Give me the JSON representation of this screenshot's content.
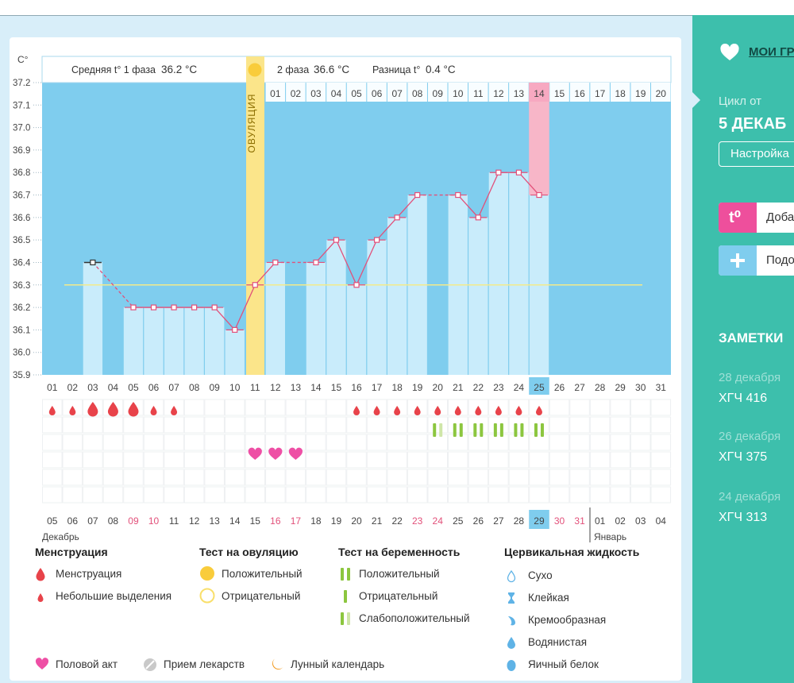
{
  "header": {
    "phase1_label": "Средняя t° 1 фаза",
    "phase1_value": "36.2 °C",
    "phase2_label": "2 фаза",
    "phase2_value": "36.6 °C",
    "diff_label": "Разница t°",
    "diff_value": "0.4 °C"
  },
  "chart_data": {
    "type": "line",
    "y_unit": "C°",
    "ylim": [
      35.9,
      37.2
    ],
    "y_ticks": [
      "37.2",
      "37.1",
      "37.0",
      "36.9",
      "36.8",
      "36.7",
      "36.6",
      "36.5",
      "36.4",
      "36.3",
      "36.2",
      "36.1",
      "36.0",
      "35.9"
    ],
    "ovulation_label": "ОВУЛЯЦИЯ",
    "cycle_days": [
      "01",
      "02",
      "03",
      "04",
      "05",
      "06",
      "07",
      "08",
      "09",
      "10",
      "11",
      "12",
      "13",
      "14",
      "15",
      "16",
      "17",
      "18",
      "19",
      "20",
      "21",
      "22",
      "23",
      "24",
      "25",
      "26",
      "27",
      "28",
      "29",
      "30",
      "31"
    ],
    "post_ovulation_days": [
      "01",
      "02",
      "03",
      "04",
      "05",
      "06",
      "07",
      "08",
      "09",
      "10",
      "11",
      "12",
      "13",
      "14",
      "15",
      "16",
      "17",
      "18",
      "19",
      "20"
    ],
    "highlight_post_day": "14",
    "highlight_cycle_day": "25",
    "temperatures": [
      {
        "day": 3,
        "value": 36.4
      },
      {
        "day": 5,
        "value": 36.2
      },
      {
        "day": 6,
        "value": 36.2
      },
      {
        "day": 7,
        "value": 36.2
      },
      {
        "day": 8,
        "value": 36.2
      },
      {
        "day": 9,
        "value": 36.2
      },
      {
        "day": 10,
        "value": 36.1
      },
      {
        "day": 11,
        "value": 36.3
      },
      {
        "day": 12,
        "value": 36.4
      },
      {
        "day": 14,
        "value": 36.4
      },
      {
        "day": 15,
        "value": 36.5
      },
      {
        "day": 16,
        "value": 36.3
      },
      {
        "day": 17,
        "value": 36.5
      },
      {
        "day": 18,
        "value": 36.6
      },
      {
        "day": 19,
        "value": 36.7
      },
      {
        "day": 21,
        "value": 36.7
      },
      {
        "day": 22,
        "value": 36.6
      },
      {
        "day": 23,
        "value": 36.8
      },
      {
        "day": 24,
        "value": 36.8
      },
      {
        "day": 25,
        "value": 36.7
      }
    ],
    "coverline": 36.3,
    "menstruation": [
      {
        "day": 1,
        "size": "small"
      },
      {
        "day": 2,
        "size": "small"
      },
      {
        "day": 3,
        "size": "large"
      },
      {
        "day": 4,
        "size": "large"
      },
      {
        "day": 5,
        "size": "large"
      },
      {
        "day": 6,
        "size": "small"
      },
      {
        "day": 7,
        "size": "small"
      },
      {
        "day": 16,
        "size": "small"
      },
      {
        "day": 17,
        "size": "small"
      },
      {
        "day": 18,
        "size": "small"
      },
      {
        "day": 19,
        "size": "small"
      },
      {
        "day": 20,
        "size": "small"
      },
      {
        "day": 21,
        "size": "small"
      },
      {
        "day": 22,
        "size": "small"
      },
      {
        "day": 23,
        "size": "small"
      },
      {
        "day": 24,
        "size": "small"
      },
      {
        "day": 25,
        "size": "small"
      }
    ],
    "pregnancy_tests": [
      {
        "day": 20,
        "result": "weak"
      },
      {
        "day": 21,
        "result": "positive"
      },
      {
        "day": 22,
        "result": "positive"
      },
      {
        "day": 23,
        "result": "positive"
      },
      {
        "day": 24,
        "result": "positive"
      },
      {
        "day": 25,
        "result": "positive"
      }
    ],
    "intercourse_days": [
      11,
      12,
      13
    ],
    "moon_day": 14,
    "dates": [
      {
        "label": "05",
        "weekend": false
      },
      {
        "label": "06",
        "weekend": false
      },
      {
        "label": "07",
        "weekend": false
      },
      {
        "label": "08",
        "weekend": false
      },
      {
        "label": "09",
        "weekend": true
      },
      {
        "label": "10",
        "weekend": true
      },
      {
        "label": "11",
        "weekend": false
      },
      {
        "label": "12",
        "weekend": false
      },
      {
        "label": "13",
        "weekend": false
      },
      {
        "label": "14",
        "weekend": false
      },
      {
        "label": "15",
        "weekend": false
      },
      {
        "label": "16",
        "weekend": true
      },
      {
        "label": "17",
        "weekend": true
      },
      {
        "label": "18",
        "weekend": false
      },
      {
        "label": "19",
        "weekend": false
      },
      {
        "label": "20",
        "weekend": false
      },
      {
        "label": "21",
        "weekend": false
      },
      {
        "label": "22",
        "weekend": false
      },
      {
        "label": "23",
        "weekend": true
      },
      {
        "label": "24",
        "weekend": true
      },
      {
        "label": "25",
        "weekend": false
      },
      {
        "label": "26",
        "weekend": false
      },
      {
        "label": "27",
        "weekend": false
      },
      {
        "label": "28",
        "weekend": false
      },
      {
        "label": "29",
        "weekend": false,
        "today": true
      },
      {
        "label": "30",
        "weekend": true
      },
      {
        "label": "31",
        "weekend": true
      },
      {
        "label": "01",
        "weekend": false
      },
      {
        "label": "02",
        "weekend": false
      },
      {
        "label": "03",
        "weekend": false
      },
      {
        "label": "04",
        "weekend": false
      }
    ],
    "month1": "Декабрь",
    "month2": "Январь"
  },
  "legend": {
    "menstruation": {
      "title": "Менструация",
      "items": [
        "Менструация",
        "Небольшие выделения"
      ]
    },
    "ovulation_test": {
      "title": "Тест на овуляцию",
      "items": [
        "Положительный",
        "Отрицательный"
      ]
    },
    "pregnancy_test": {
      "title": "Тест на беременность",
      "items": [
        "Положительный",
        "Отрицательный",
        "Слабоположительный"
      ]
    },
    "cervical": {
      "title": "Цервикальная жидкость",
      "items": [
        "Сухо",
        "Клейкая",
        "Кремообразная",
        "Водянистая",
        "Яичный белок"
      ]
    },
    "bottom": [
      "Половой акт",
      "Прием лекарств",
      "Лунный календарь"
    ]
  },
  "colors": {
    "chart_bg": "#7fcdee",
    "bar": "#c9ecfb",
    "line": "#e2507a",
    "ovulation": "#fbe58a",
    "pink_day": "#f7b6c8",
    "panel": "#3dbfac",
    "today": "#7fcdee"
  },
  "sidebar": {
    "my_charts": "МОИ ГР",
    "cycle_from": "Цикл от",
    "cycle_date": "5 ДЕКАБ",
    "settings": "Настройка",
    "add_temp_icon": "t⁰",
    "add_temp_label": "Доба",
    "add_more_label": "Подо",
    "notes_title": "ЗАМЕТКИ",
    "notes": [
      {
        "date": "28 декабря",
        "text": "ХГЧ 416"
      },
      {
        "date": "26 декабря",
        "text": "ХГЧ 375"
      },
      {
        "date": "24 декабря",
        "text": "ХГЧ 313"
      }
    ]
  }
}
